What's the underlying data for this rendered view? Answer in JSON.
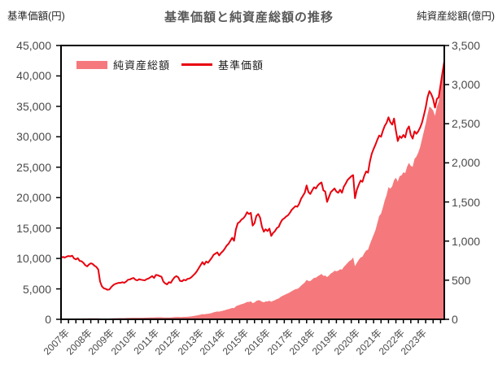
{
  "title": "基準価額と純資産総額の推移",
  "legend": {
    "area_label": "純資産総額",
    "line_label": "基準価額"
  },
  "colors": {
    "area": "#f5797c",
    "line": "#e8000d",
    "axis": "#000000",
    "title_text": "#595959",
    "tick_text": "#4a4a4a"
  },
  "chart_data": {
    "type": "line",
    "title": "基準価額と純資産総額の推移",
    "grid": false,
    "legend_position": "top-left-inside",
    "x_unit": "month",
    "x_range": [
      "2007-01",
      "2024-03"
    ],
    "x_tick_labels": [
      "2007年",
      "2008年",
      "2009年",
      "2010年",
      "2011年",
      "2012年",
      "2013年",
      "2014年",
      "2015年",
      "2016年",
      "2017年",
      "2018年",
      "2019年",
      "2020年",
      "2021年",
      "2022年",
      "2023年"
    ],
    "left_axis": {
      "label": "基準価額(円)",
      "ylim": [
        0,
        45000
      ],
      "tick_step": 5000,
      "tick_labels": [
        "45,000",
        "40,000",
        "35,000",
        "30,000",
        "25,000",
        "20,000",
        "15,000",
        "10,000",
        "5,000",
        "0"
      ]
    },
    "right_axis": {
      "label": "純資産総額(億円)",
      "ylim": [
        0,
        3500
      ],
      "tick_step": 500,
      "tick_labels": [
        "3,500",
        "3,000",
        "2,500",
        "2,000",
        "1,500",
        "1,000",
        "500",
        "0"
      ]
    },
    "series": [
      {
        "name": "純資産総額",
        "type": "area",
        "axis": "right",
        "color": "#f5797c",
        "values": [
          8,
          8,
          9,
          9,
          10,
          10,
          11,
          11,
          11,
          12,
          11,
          11,
          12,
          12,
          12,
          13,
          13,
          13,
          13,
          13,
          13,
          11,
          10,
          10,
          10,
          10,
          11,
          12,
          13,
          14,
          14,
          15,
          15,
          16,
          16,
          17,
          18,
          18,
          19,
          20,
          19,
          19,
          20,
          20,
          20,
          21,
          22,
          22,
          23,
          24,
          24,
          26,
          26,
          26,
          26,
          24,
          23,
          23,
          24,
          24,
          26,
          28,
          30,
          30,
          28,
          29,
          31,
          31,
          33,
          35,
          38,
          42,
          46,
          50,
          55,
          60,
          66,
          64,
          69,
          70,
          75,
          81,
          89,
          95,
          100,
          98,
          104,
          110,
          116,
          124,
          130,
          138,
          146,
          143,
          165,
          178,
          185,
          193,
          200,
          210,
          222,
          222,
          230,
          208,
          215,
          235,
          244,
          240,
          225,
          218,
          228,
          228,
          238,
          224,
          236,
          245,
          258,
          266,
          285,
          300,
          310,
          322,
          332,
          345,
          360,
          372,
          385,
          390,
          405,
          430,
          450,
          470,
          505,
          490,
          490,
          510,
          530,
          532,
          550,
          565,
          580,
          555,
          560,
          540,
          560,
          585,
          600,
          620,
          615,
          620,
          640,
          635,
          670,
          695,
          720,
          745,
          760,
          790,
          680,
          720,
          760,
          790,
          800,
          845,
          880,
          890,
          960,
          1020,
          1080,
          1140,
          1230,
          1320,
          1350,
          1430,
          1520,
          1590,
          1690,
          1670,
          1700,
          1780,
          1810,
          1760,
          1830,
          1840,
          1880,
          1870,
          1950,
          2000,
          1960,
          1950,
          2050,
          2080,
          2130,
          2200,
          2300,
          2400,
          2500,
          2620,
          2720,
          2700,
          2670,
          2600,
          2720,
          2780,
          2950,
          3100,
          3280
        ]
      },
      {
        "name": "基準価額",
        "type": "line",
        "axis": "left",
        "color": "#e8000d",
        "values": [
          10100,
          10250,
          10150,
          10300,
          10400,
          10350,
          10450,
          10000,
          9850,
          10050,
          9600,
          9550,
          9300,
          8900,
          8700,
          9000,
          9200,
          9100,
          8800,
          8600,
          8200,
          6200,
          5400,
          5100,
          5000,
          4850,
          4900,
          5300,
          5600,
          5800,
          5900,
          6000,
          6000,
          6100,
          6000,
          6200,
          6500,
          6550,
          6700,
          6800,
          6500,
          6400,
          6600,
          6500,
          6450,
          6400,
          6600,
          6700,
          6900,
          7100,
          6800,
          7300,
          7250,
          7100,
          7000,
          6200,
          5900,
          5750,
          6100,
          6000,
          6500,
          6900,
          7100,
          6900,
          6300,
          6250,
          6500,
          6400,
          6650,
          6700,
          6900,
          7200,
          7500,
          7900,
          8400,
          8900,
          9400,
          9000,
          9500,
          9300,
          9700,
          10100,
          10600,
          10800,
          11000,
          10500,
          10900,
          11200,
          11600,
          12100,
          12400,
          12900,
          13400,
          12900,
          14800,
          15800,
          16000,
          16400,
          16600,
          17000,
          17600,
          17300,
          17500,
          15400,
          15800,
          17000,
          17300,
          16700,
          15200,
          14400,
          14800,
          14500,
          14900,
          13700,
          14200,
          14500,
          15000,
          15200,
          15900,
          16400,
          16600,
          16900,
          17100,
          17500,
          18000,
          18300,
          18600,
          18500,
          19000,
          19800,
          20300,
          20800,
          22000,
          20900,
          20600,
          21200,
          21700,
          21500,
          22000,
          22300,
          22500,
          21200,
          21000,
          19300,
          20100,
          20900,
          21200,
          21500,
          21000,
          20800,
          21300,
          20800,
          21800,
          22300,
          22900,
          23200,
          23500,
          23700,
          19900,
          21300,
          22100,
          22800,
          22600,
          23600,
          24300,
          24100,
          25900,
          27200,
          28000,
          28700,
          29500,
          30200,
          30000,
          31000,
          31800,
          32300,
          33200,
          32400,
          32000,
          33000,
          31000,
          29300,
          30100,
          29800,
          30300,
          29900,
          31200,
          31700,
          30300,
          29700,
          30900,
          30500,
          30900,
          31500,
          32300,
          33500,
          34800,
          36500,
          37500,
          37000,
          36200,
          34800,
          36200,
          36500,
          38500,
          40500,
          42400
        ]
      }
    ]
  }
}
